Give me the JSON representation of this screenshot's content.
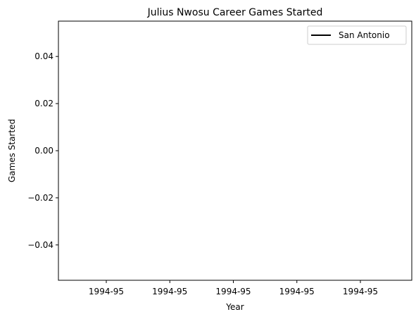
{
  "chart_data": {
    "type": "line",
    "title": "Julius Nwosu Career Games Started",
    "xlabel": "Year",
    "ylabel": "Games Started",
    "categories": [
      "1994-95"
    ],
    "x_tick_labels": [
      "1994-95",
      "1994-95",
      "1994-95",
      "1994-95",
      "1994-95"
    ],
    "ylim": [
      -0.055,
      0.055
    ],
    "y_ticks": [
      -0.04,
      -0.02,
      0.0,
      0.02,
      0.04
    ],
    "y_tick_labels": [
      "−0.04",
      "−0.02",
      "0.00",
      "0.02",
      "0.04"
    ],
    "series": [
      {
        "name": "San Antonio",
        "values": [
          0
        ],
        "color": "#000000"
      }
    ],
    "grid": false,
    "legend": "top-right"
  }
}
